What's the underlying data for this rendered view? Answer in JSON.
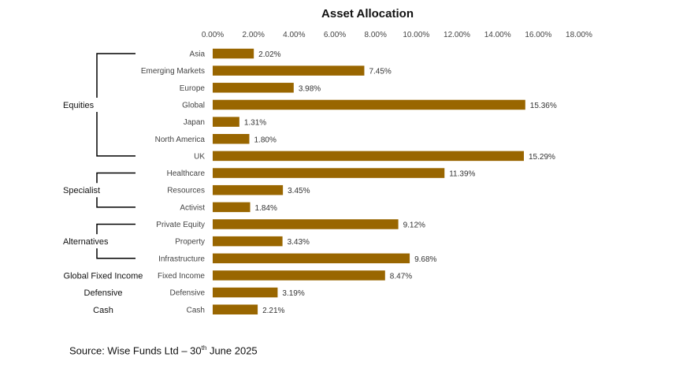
{
  "chart_data": {
    "type": "bar",
    "orientation": "horizontal",
    "title": "Asset Allocation",
    "categories": [
      "Asia",
      "Emerging Markets",
      "Europe",
      "Global",
      "Japan",
      "North America",
      "UK",
      "Healthcare",
      "Resources",
      "Activist",
      "Private Equity",
      "Property",
      "Infrastructure",
      "Fixed Income",
      "Defensive",
      "Cash"
    ],
    "values": [
      2.02,
      7.45,
      3.98,
      15.36,
      1.31,
      1.8,
      15.29,
      11.39,
      3.45,
      1.84,
      9.12,
      3.43,
      9.68,
      8.47,
      3.19,
      2.21
    ],
    "value_labels": [
      "2.02%",
      "7.45%",
      "3.98%",
      "15.36%",
      "1.31%",
      "1.80%",
      "15.29%",
      "11.39%",
      "3.45%",
      "1.84%",
      "9.12%",
      "3.43%",
      "9.68%",
      "8.47%",
      "3.19%",
      "2.21%"
    ],
    "xlim": [
      0,
      18
    ],
    "x_ticks": [
      "0.00%",
      "2.00%",
      "4.00%",
      "6.00%",
      "8.00%",
      "10.00%",
      "12.00%",
      "14.00%",
      "16.00%",
      "18.00%"
    ],
    "axis_position": "top",
    "grid": false,
    "bar_color": "#996600",
    "groups": [
      {
        "name": "Equities",
        "from": 0,
        "to": 6,
        "bracket": true
      },
      {
        "name": "Specialist",
        "from": 7,
        "to": 9,
        "bracket": true
      },
      {
        "name": "Alternatives",
        "from": 10,
        "to": 12,
        "bracket": true
      },
      {
        "name": "Global Fixed Income",
        "from": 13,
        "to": 13,
        "bracket": false
      },
      {
        "name": "Defensive",
        "from": 14,
        "to": 14,
        "bracket": false
      },
      {
        "name": "Cash",
        "from": 15,
        "to": 15,
        "bracket": false
      }
    ]
  },
  "source": {
    "prefix": "Source: Wise Funds Ltd – 30",
    "superscript": "th",
    "suffix": " June 2025"
  }
}
